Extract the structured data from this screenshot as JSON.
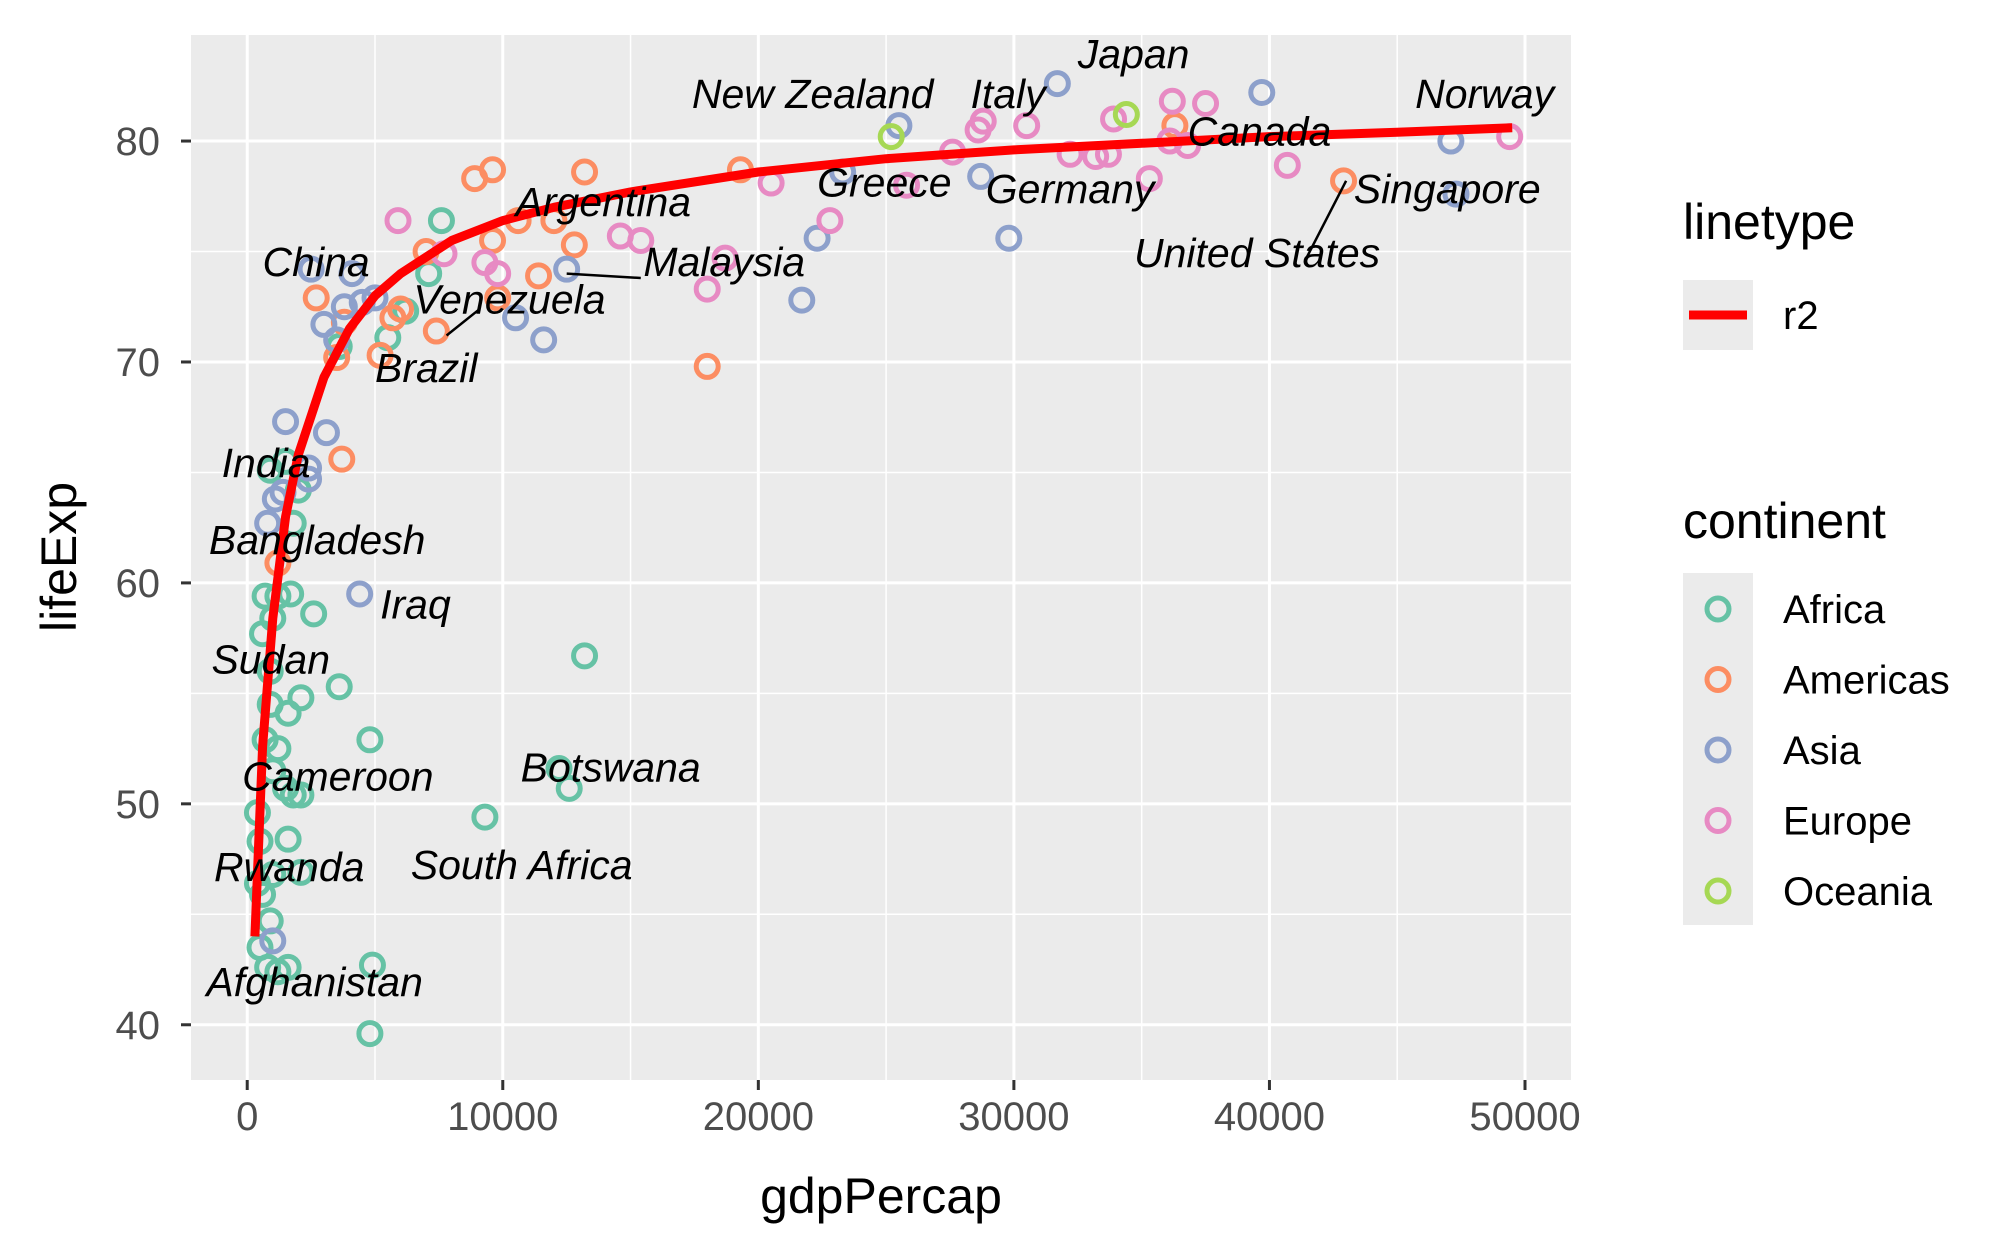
{
  "chart_data": {
    "type": "scatter",
    "xlabel": "gdpPercap",
    "ylabel": "lifeExp",
    "xlim": [
      -2200,
      51800
    ],
    "ylim": [
      37.5,
      84.8
    ],
    "x_ticks": [
      0,
      10000,
      20000,
      30000,
      40000,
      50000
    ],
    "x_tick_labels": [
      "0",
      "10000",
      "20000",
      "30000",
      "40000",
      "50000"
    ],
    "y_ticks": [
      40,
      50,
      60,
      70,
      80
    ],
    "y_tick_labels": [
      "40",
      "50",
      "60",
      "70",
      "80"
    ],
    "grid": true,
    "legend_position": "right",
    "background": "#ebebeb",
    "colors": {
      "Africa": "#66c2a5",
      "Americas": "#fc8d62",
      "Asia": "#8da0cb",
      "Europe": "#e78ac3",
      "Oceania": "#a6d854",
      "fit": "#ff0000"
    },
    "legends": [
      {
        "title": "linetype",
        "entries": [
          {
            "label": "r2",
            "key": "fit"
          }
        ]
      },
      {
        "title": "continent",
        "entries": [
          {
            "label": "Africa",
            "key": "Africa"
          },
          {
            "label": "Americas",
            "key": "Americas"
          },
          {
            "label": "Asia",
            "key": "Asia"
          },
          {
            "label": "Europe",
            "key": "Europe"
          },
          {
            "label": "Oceania",
            "key": "Oceania"
          }
        ]
      }
    ],
    "fit_line": {
      "name": "r2",
      "x": [
        300,
        600,
        1000,
        1500,
        2000,
        3000,
        4000,
        5000,
        6000,
        8000,
        10000,
        12000,
        15000,
        20000,
        25000,
        30000,
        35000,
        40000,
        45000,
        49500
      ],
      "y": [
        44.0,
        52.6,
        58.4,
        63.0,
        65.8,
        69.3,
        71.5,
        73.0,
        74.0,
        75.5,
        76.4,
        77.0,
        77.7,
        78.6,
        79.2,
        79.6,
        79.9,
        80.2,
        80.4,
        80.6
      ]
    },
    "points": [
      {
        "x": 4800,
        "y": 39.6,
        "group": "Africa"
      },
      {
        "x": 4900,
        "y": 42.7,
        "group": "Africa"
      },
      {
        "x": 1200,
        "y": 42.4,
        "group": "Africa"
      },
      {
        "x": 800,
        "y": 42.6,
        "group": "Africa"
      },
      {
        "x": 1600,
        "y": 42.6,
        "group": "Africa"
      },
      {
        "x": 500,
        "y": 43.5,
        "group": "Africa"
      },
      {
        "x": 900,
        "y": 44.7,
        "group": "Africa"
      },
      {
        "x": 600,
        "y": 45.9,
        "group": "Africa"
      },
      {
        "x": 400,
        "y": 46.4,
        "group": "Africa"
      },
      {
        "x": 1000,
        "y": 46.8,
        "group": "Africa"
      },
      {
        "x": 2100,
        "y": 46.9,
        "group": "Africa"
      },
      {
        "x": 500,
        "y": 48.3,
        "group": "Africa"
      },
      {
        "x": 1600,
        "y": 48.4,
        "group": "Africa"
      },
      {
        "x": 400,
        "y": 49.6,
        "group": "Africa"
      },
      {
        "x": 9300,
        "y": 49.4,
        "group": "Africa"
      },
      {
        "x": 1800,
        "y": 50.4,
        "group": "Africa"
      },
      {
        "x": 2100,
        "y": 50.4,
        "group": "Africa"
      },
      {
        "x": 1500,
        "y": 50.7,
        "group": "Africa"
      },
      {
        "x": 12600,
        "y": 50.7,
        "group": "Africa"
      },
      {
        "x": 12200,
        "y": 51.6,
        "group": "Africa"
      },
      {
        "x": 1000,
        "y": 51.5,
        "group": "Africa"
      },
      {
        "x": 1200,
        "y": 52.5,
        "group": "Africa"
      },
      {
        "x": 700,
        "y": 52.9,
        "group": "Africa"
      },
      {
        "x": 4800,
        "y": 52.9,
        "group": "Africa"
      },
      {
        "x": 900,
        "y": 54.5,
        "group": "Africa"
      },
      {
        "x": 1600,
        "y": 54.1,
        "group": "Africa"
      },
      {
        "x": 2100,
        "y": 54.8,
        "group": "Africa"
      },
      {
        "x": 3600,
        "y": 55.3,
        "group": "Africa"
      },
      {
        "x": 900,
        "y": 56.0,
        "group": "Africa"
      },
      {
        "x": 13200,
        "y": 56.7,
        "group": "Africa"
      },
      {
        "x": 600,
        "y": 57.7,
        "group": "Africa"
      },
      {
        "x": 1000,
        "y": 58.4,
        "group": "Africa"
      },
      {
        "x": 2600,
        "y": 58.6,
        "group": "Africa"
      },
      {
        "x": 700,
        "y": 59.4,
        "group": "Africa"
      },
      {
        "x": 1200,
        "y": 59.4,
        "group": "Africa"
      },
      {
        "x": 1700,
        "y": 59.5,
        "group": "Africa"
      },
      {
        "x": 1800,
        "y": 62.7,
        "group": "Africa"
      },
      {
        "x": 2000,
        "y": 64.2,
        "group": "Africa"
      },
      {
        "x": 900,
        "y": 65.1,
        "group": "Africa"
      },
      {
        "x": 1500,
        "y": 65.5,
        "group": "Africa"
      },
      {
        "x": 3600,
        "y": 70.7,
        "group": "Africa"
      },
      {
        "x": 5500,
        "y": 71.1,
        "group": "Africa"
      },
      {
        "x": 6200,
        "y": 72.3,
        "group": "Africa"
      },
      {
        "x": 7100,
        "y": 74.0,
        "group": "Africa"
      },
      {
        "x": 7600,
        "y": 76.4,
        "group": "Africa"
      },
      {
        "x": 1200,
        "y": 60.9,
        "group": "Americas"
      },
      {
        "x": 3700,
        "y": 65.6,
        "group": "Americas"
      },
      {
        "x": 3500,
        "y": 70.2,
        "group": "Americas"
      },
      {
        "x": 5200,
        "y": 70.3,
        "group": "Americas"
      },
      {
        "x": 7400,
        "y": 71.4,
        "group": "Americas"
      },
      {
        "x": 3800,
        "y": 71.8,
        "group": "Americas"
      },
      {
        "x": 5700,
        "y": 72.0,
        "group": "Americas"
      },
      {
        "x": 6000,
        "y": 72.4,
        "group": "Americas"
      },
      {
        "x": 2700,
        "y": 72.9,
        "group": "Americas"
      },
      {
        "x": 9800,
        "y": 72.9,
        "group": "Americas"
      },
      {
        "x": 11400,
        "y": 73.9,
        "group": "Americas"
      },
      {
        "x": 7000,
        "y": 75.0,
        "group": "Americas"
      },
      {
        "x": 9600,
        "y": 75.5,
        "group": "Americas"
      },
      {
        "x": 12800,
        "y": 75.3,
        "group": "Americas"
      },
      {
        "x": 10600,
        "y": 76.4,
        "group": "Americas"
      },
      {
        "x": 12000,
        "y": 76.4,
        "group": "Americas"
      },
      {
        "x": 8900,
        "y": 78.3,
        "group": "Americas"
      },
      {
        "x": 9600,
        "y": 78.7,
        "group": "Americas"
      },
      {
        "x": 13200,
        "y": 78.6,
        "group": "Americas"
      },
      {
        "x": 18000,
        "y": 69.8,
        "group": "Americas"
      },
      {
        "x": 19300,
        "y": 78.7,
        "group": "Americas"
      },
      {
        "x": 36300,
        "y": 80.7,
        "group": "Americas"
      },
      {
        "x": 42900,
        "y": 78.2,
        "group": "Americas"
      },
      {
        "x": 1500,
        "y": 67.3,
        "group": "Asia"
      },
      {
        "x": 3100,
        "y": 66.8,
        "group": "Asia"
      },
      {
        "x": 2400,
        "y": 65.2,
        "group": "Asia"
      },
      {
        "x": 2400,
        "y": 64.7,
        "group": "Asia"
      },
      {
        "x": 1100,
        "y": 63.8,
        "group": "Asia"
      },
      {
        "x": 1400,
        "y": 64.1,
        "group": "Asia"
      },
      {
        "x": 800,
        "y": 62.7,
        "group": "Asia"
      },
      {
        "x": 4400,
        "y": 59.5,
        "group": "Asia"
      },
      {
        "x": 1000,
        "y": 43.8,
        "group": "Asia"
      },
      {
        "x": 2500,
        "y": 74.2,
        "group": "Asia"
      },
      {
        "x": 4100,
        "y": 74.0,
        "group": "Asia"
      },
      {
        "x": 3000,
        "y": 71.7,
        "group": "Asia"
      },
      {
        "x": 3500,
        "y": 71.0,
        "group": "Asia"
      },
      {
        "x": 3800,
        "y": 72.5,
        "group": "Asia"
      },
      {
        "x": 4500,
        "y": 72.7,
        "group": "Asia"
      },
      {
        "x": 5000,
        "y": 72.9,
        "group": "Asia"
      },
      {
        "x": 10500,
        "y": 72.0,
        "group": "Asia"
      },
      {
        "x": 11600,
        "y": 71.0,
        "group": "Asia"
      },
      {
        "x": 12500,
        "y": 74.2,
        "group": "Asia"
      },
      {
        "x": 21700,
        "y": 72.8,
        "group": "Asia"
      },
      {
        "x": 22300,
        "y": 75.6,
        "group": "Asia"
      },
      {
        "x": 23300,
        "y": 78.6,
        "group": "Asia"
      },
      {
        "x": 25500,
        "y": 80.7,
        "group": "Asia"
      },
      {
        "x": 28700,
        "y": 78.4,
        "group": "Asia"
      },
      {
        "x": 29800,
        "y": 75.6,
        "group": "Asia"
      },
      {
        "x": 31700,
        "y": 82.6,
        "group": "Asia"
      },
      {
        "x": 39700,
        "y": 82.2,
        "group": "Asia"
      },
      {
        "x": 47100,
        "y": 80.0,
        "group": "Asia"
      },
      {
        "x": 47300,
        "y": 77.6,
        "group": "Asia"
      },
      {
        "x": 5900,
        "y": 76.4,
        "group": "Europe"
      },
      {
        "x": 7700,
        "y": 74.9,
        "group": "Europe"
      },
      {
        "x": 9300,
        "y": 74.5,
        "group": "Europe"
      },
      {
        "x": 9800,
        "y": 74.0,
        "group": "Europe"
      },
      {
        "x": 14600,
        "y": 75.7,
        "group": "Europe"
      },
      {
        "x": 15400,
        "y": 75.5,
        "group": "Europe"
      },
      {
        "x": 18000,
        "y": 73.3,
        "group": "Europe"
      },
      {
        "x": 18700,
        "y": 74.7,
        "group": "Europe"
      },
      {
        "x": 20500,
        "y": 78.1,
        "group": "Europe"
      },
      {
        "x": 22800,
        "y": 76.4,
        "group": "Europe"
      },
      {
        "x": 25800,
        "y": 78.0,
        "group": "Europe"
      },
      {
        "x": 27600,
        "y": 79.5,
        "group": "Europe"
      },
      {
        "x": 28600,
        "y": 80.5,
        "group": "Europe"
      },
      {
        "x": 28800,
        "y": 80.9,
        "group": "Europe"
      },
      {
        "x": 30500,
        "y": 80.7,
        "group": "Europe"
      },
      {
        "x": 32200,
        "y": 79.4,
        "group": "Europe"
      },
      {
        "x": 33200,
        "y": 79.3,
        "group": "Europe"
      },
      {
        "x": 33700,
        "y": 79.4,
        "group": "Europe"
      },
      {
        "x": 33900,
        "y": 81.0,
        "group": "Europe"
      },
      {
        "x": 35300,
        "y": 78.3,
        "group": "Europe"
      },
      {
        "x": 36100,
        "y": 80.0,
        "group": "Europe"
      },
      {
        "x": 36200,
        "y": 81.8,
        "group": "Europe"
      },
      {
        "x": 36800,
        "y": 79.8,
        "group": "Europe"
      },
      {
        "x": 37500,
        "y": 81.7,
        "group": "Europe"
      },
      {
        "x": 40700,
        "y": 78.9,
        "group": "Europe"
      },
      {
        "x": 49400,
        "y": 80.2,
        "group": "Europe"
      },
      {
        "x": 25200,
        "y": 80.2,
        "group": "Oceania"
      },
      {
        "x": 34400,
        "y": 81.2,
        "group": "Oceania"
      }
    ],
    "annotations": [
      {
        "text": "Norway",
        "x": 45700,
        "y": 81.5
      },
      {
        "text": "Japan",
        "x": 32500,
        "y": 83.3
      },
      {
        "text": "Italy",
        "x": 28300,
        "y": 81.5
      },
      {
        "text": "New Zealand",
        "x": 17400,
        "y": 81.5
      },
      {
        "text": "Canada",
        "x": 36800,
        "y": 79.8
      },
      {
        "text": "Greece",
        "x": 22300,
        "y": 77.5
      },
      {
        "text": "Germany",
        "x": 28900,
        "y": 77.2
      },
      {
        "text": "Singapore",
        "x": 43300,
        "y": 77.2
      },
      {
        "text": "United States",
        "x": 34700,
        "y": 74.3
      },
      {
        "text": "Argentina",
        "x": 10500,
        "y": 76.6
      },
      {
        "text": "Malaysia",
        "x": 15500,
        "y": 73.9
      },
      {
        "text": "China",
        "x": 600,
        "y": 73.9
      },
      {
        "text": "Venezuela",
        "x": 6500,
        "y": 72.2
      },
      {
        "text": "Brazil",
        "x": 5000,
        "y": 69.1
      },
      {
        "text": "India",
        "x": -1000,
        "y": 64.8
      },
      {
        "text": "Bangladesh",
        "x": -1500,
        "y": 61.3
      },
      {
        "text": "Iraq",
        "x": 5200,
        "y": 58.4
      },
      {
        "text": "Sudan",
        "x": -1400,
        "y": 55.9
      },
      {
        "text": "Cameroon",
        "x": -200,
        "y": 50.6
      },
      {
        "text": "Botswana",
        "x": 10700,
        "y": 51.0
      },
      {
        "text": "South Africa",
        "x": 6400,
        "y": 46.6
      },
      {
        "text": "Rwanda",
        "x": -1300,
        "y": 46.5
      },
      {
        "text": "Afghanistan",
        "x": -1600,
        "y": 41.3
      }
    ],
    "connectors": [
      {
        "x1": 41400,
        "y1": 74.6,
        "x2": 43000,
        "y2": 78.2
      },
      {
        "x1": 12500,
        "y1": 74.0,
        "x2": 15400,
        "y2": 73.8
      },
      {
        "x1": 7800,
        "y1": 71.2,
        "x2": 9100,
        "y2": 72.4
      }
    ]
  }
}
